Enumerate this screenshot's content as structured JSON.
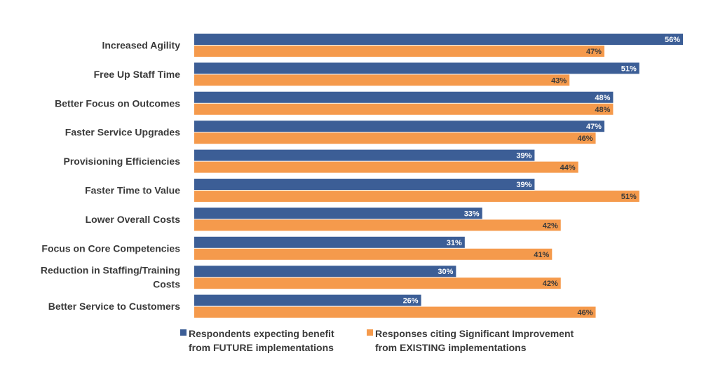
{
  "chart_data": {
    "type": "bar",
    "orientation": "horizontal",
    "title": "",
    "xlabel": "",
    "ylabel": "",
    "xlim": [
      0,
      56
    ],
    "grid": false,
    "legend_position": "bottom",
    "value_suffix": "%",
    "categories": [
      [
        "Increased Agility"
      ],
      [
        "Free Up Staff Time"
      ],
      [
        "Better Focus on Outcomes"
      ],
      [
        "Faster Service Upgrades"
      ],
      [
        "Provisioning Efficiencies"
      ],
      [
        "Faster Time to Value"
      ],
      [
        "Lower Overall Costs"
      ],
      [
        "Focus on Core Competencies"
      ],
      [
        "Reduction in Staffing/Training",
        "Costs"
      ],
      [
        "Better Service to Customers"
      ]
    ],
    "series": [
      {
        "name": [
          "Respondents expecting benefit",
          "from FUTURE implementations"
        ],
        "color": "#3c5e96",
        "label_color": "#ffffff",
        "values": [
          56,
          51,
          48,
          47,
          39,
          39,
          33,
          31,
          30,
          26
        ]
      },
      {
        "name": [
          "Responses citing Significant Improvement",
          "from EXISTING implementations"
        ],
        "color": "#f59a4c",
        "label_color": "#3a3a3a",
        "values": [
          47,
          43,
          48,
          46,
          44,
          51,
          42,
          41,
          42,
          46
        ]
      }
    ]
  }
}
